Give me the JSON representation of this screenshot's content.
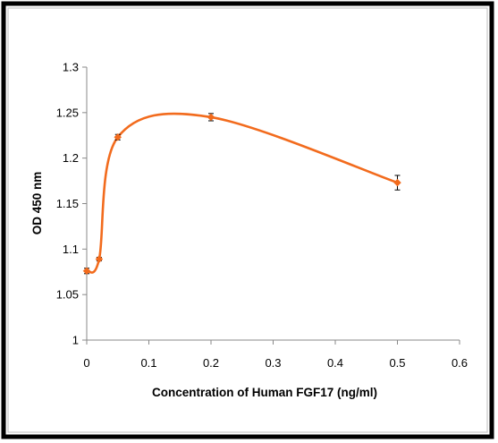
{
  "chart_data": {
    "type": "line",
    "title": "",
    "xlabel": "Concentration of Human FGF17 (ng/ml)",
    "ylabel": "OD 450 nm",
    "xlim": [
      0,
      0.6
    ],
    "ylim": [
      1,
      1.3
    ],
    "x_ticks": [
      "0",
      "0.1",
      "0.2",
      "0.3",
      "0.4",
      "0.5",
      "0.6"
    ],
    "y_ticks": [
      "1",
      "1.05",
      "1.1",
      "1.15",
      "1.2",
      "1.25",
      "1.3"
    ],
    "grid": false,
    "legend": "none",
    "smooth": true,
    "series": [
      {
        "color": "#F26B1D",
        "marker": "diamond",
        "points": [
          {
            "x": 0,
            "y": 1.076,
            "err": 0.003
          },
          {
            "x": 0.02,
            "y": 1.089,
            "err": 0.002
          },
          {
            "x": 0.05,
            "y": 1.223,
            "err": 0.003
          },
          {
            "x": 0.2,
            "y": 1.245,
            "err": 0.004
          },
          {
            "x": 0.5,
            "y": 1.173,
            "err": 0.008
          }
        ]
      }
    ]
  }
}
